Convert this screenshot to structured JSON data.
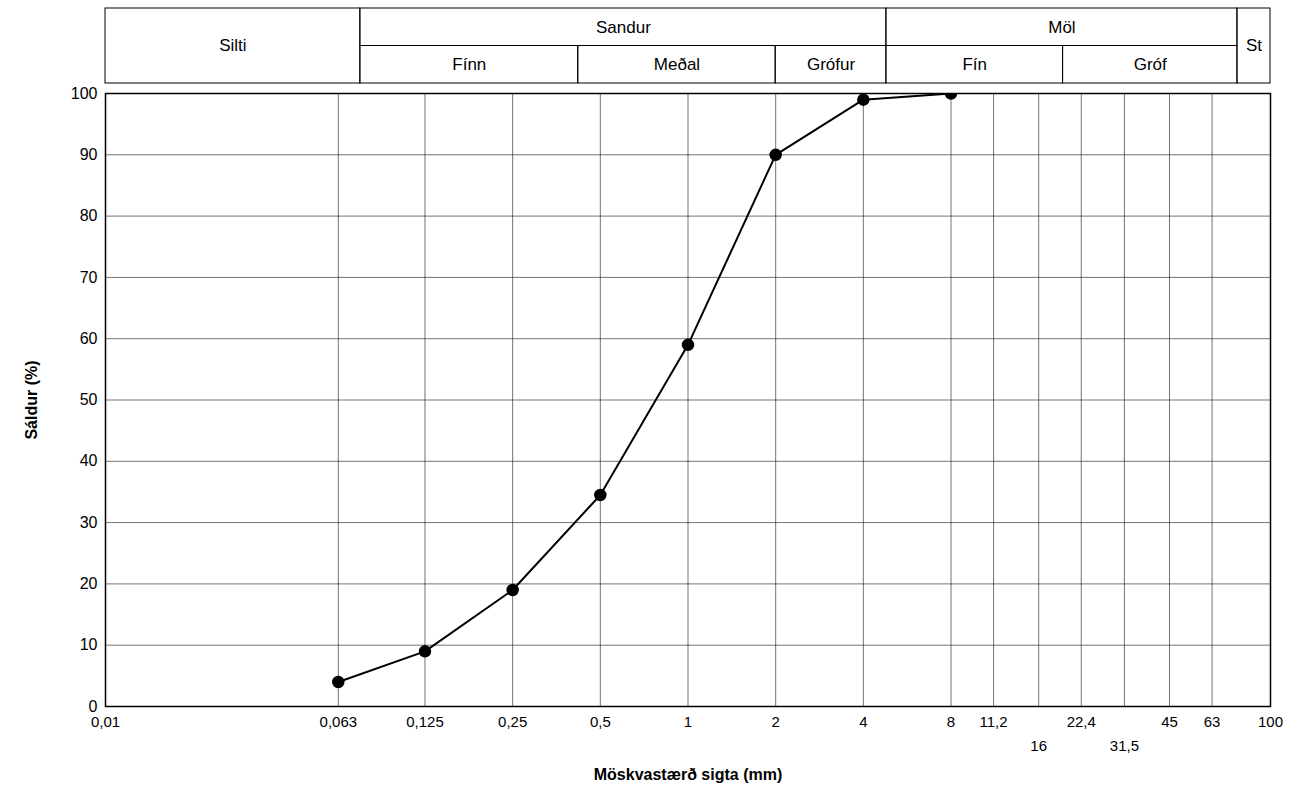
{
  "chart_data": {
    "type": "line",
    "xlabel": "Möskvastærð sigta (mm)",
    "ylabel": "Sáldur (%)",
    "x": [
      0.063,
      0.125,
      0.25,
      0.5,
      1,
      2,
      4,
      8
    ],
    "values": [
      4,
      9,
      19,
      34.5,
      59,
      90,
      99,
      100
    ],
    "color": "#000000",
    "marker": "circle",
    "log": "x",
    "grid": true,
    "xlim": [
      0.01,
      100
    ],
    "ylim": [
      0,
      100
    ],
    "xticks": [
      {
        "value": 0.01,
        "label": "0,01"
      },
      {
        "value": 0.063,
        "label": "0,063"
      },
      {
        "value": 0.125,
        "label": "0,125"
      },
      {
        "value": 0.25,
        "label": "0,25"
      },
      {
        "value": 0.5,
        "label": "0,5"
      },
      1,
      2,
      4,
      8,
      {
        "value": 11.2,
        "label": "11,2"
      },
      16,
      {
        "value": 22.4,
        "label": "22,4"
      },
      {
        "value": 31.5,
        "label": "31,5"
      },
      45,
      63,
      100
    ],
    "yticks": [
      0,
      10,
      20,
      30,
      40,
      50,
      60,
      70,
      80,
      90,
      100
    ],
    "size_classes": [
      {
        "label": "Silti",
        "range": [
          0.01,
          0.075
        ]
      },
      {
        "label": "Sandur",
        "range": [
          0.075,
          4.8
        ],
        "subclasses": [
          {
            "label": "Fínn",
            "range": [
              0.075,
              0.42
            ]
          },
          {
            "label": "Meðal",
            "range": [
              0.42,
              2
            ]
          },
          {
            "label": "Grófur",
            "range": [
              2,
              4.8
            ]
          }
        ]
      },
      {
        "label": "Möl",
        "range": [
          4.8,
          77
        ],
        "subclasses": [
          {
            "label": "Fín",
            "range": [
              4.8,
              19.4
            ]
          },
          {
            "label": "Gróf",
            "range": [
              19.4,
              77
            ]
          }
        ]
      },
      {
        "label": "St",
        "range": [
          77,
          100
        ]
      }
    ]
  }
}
